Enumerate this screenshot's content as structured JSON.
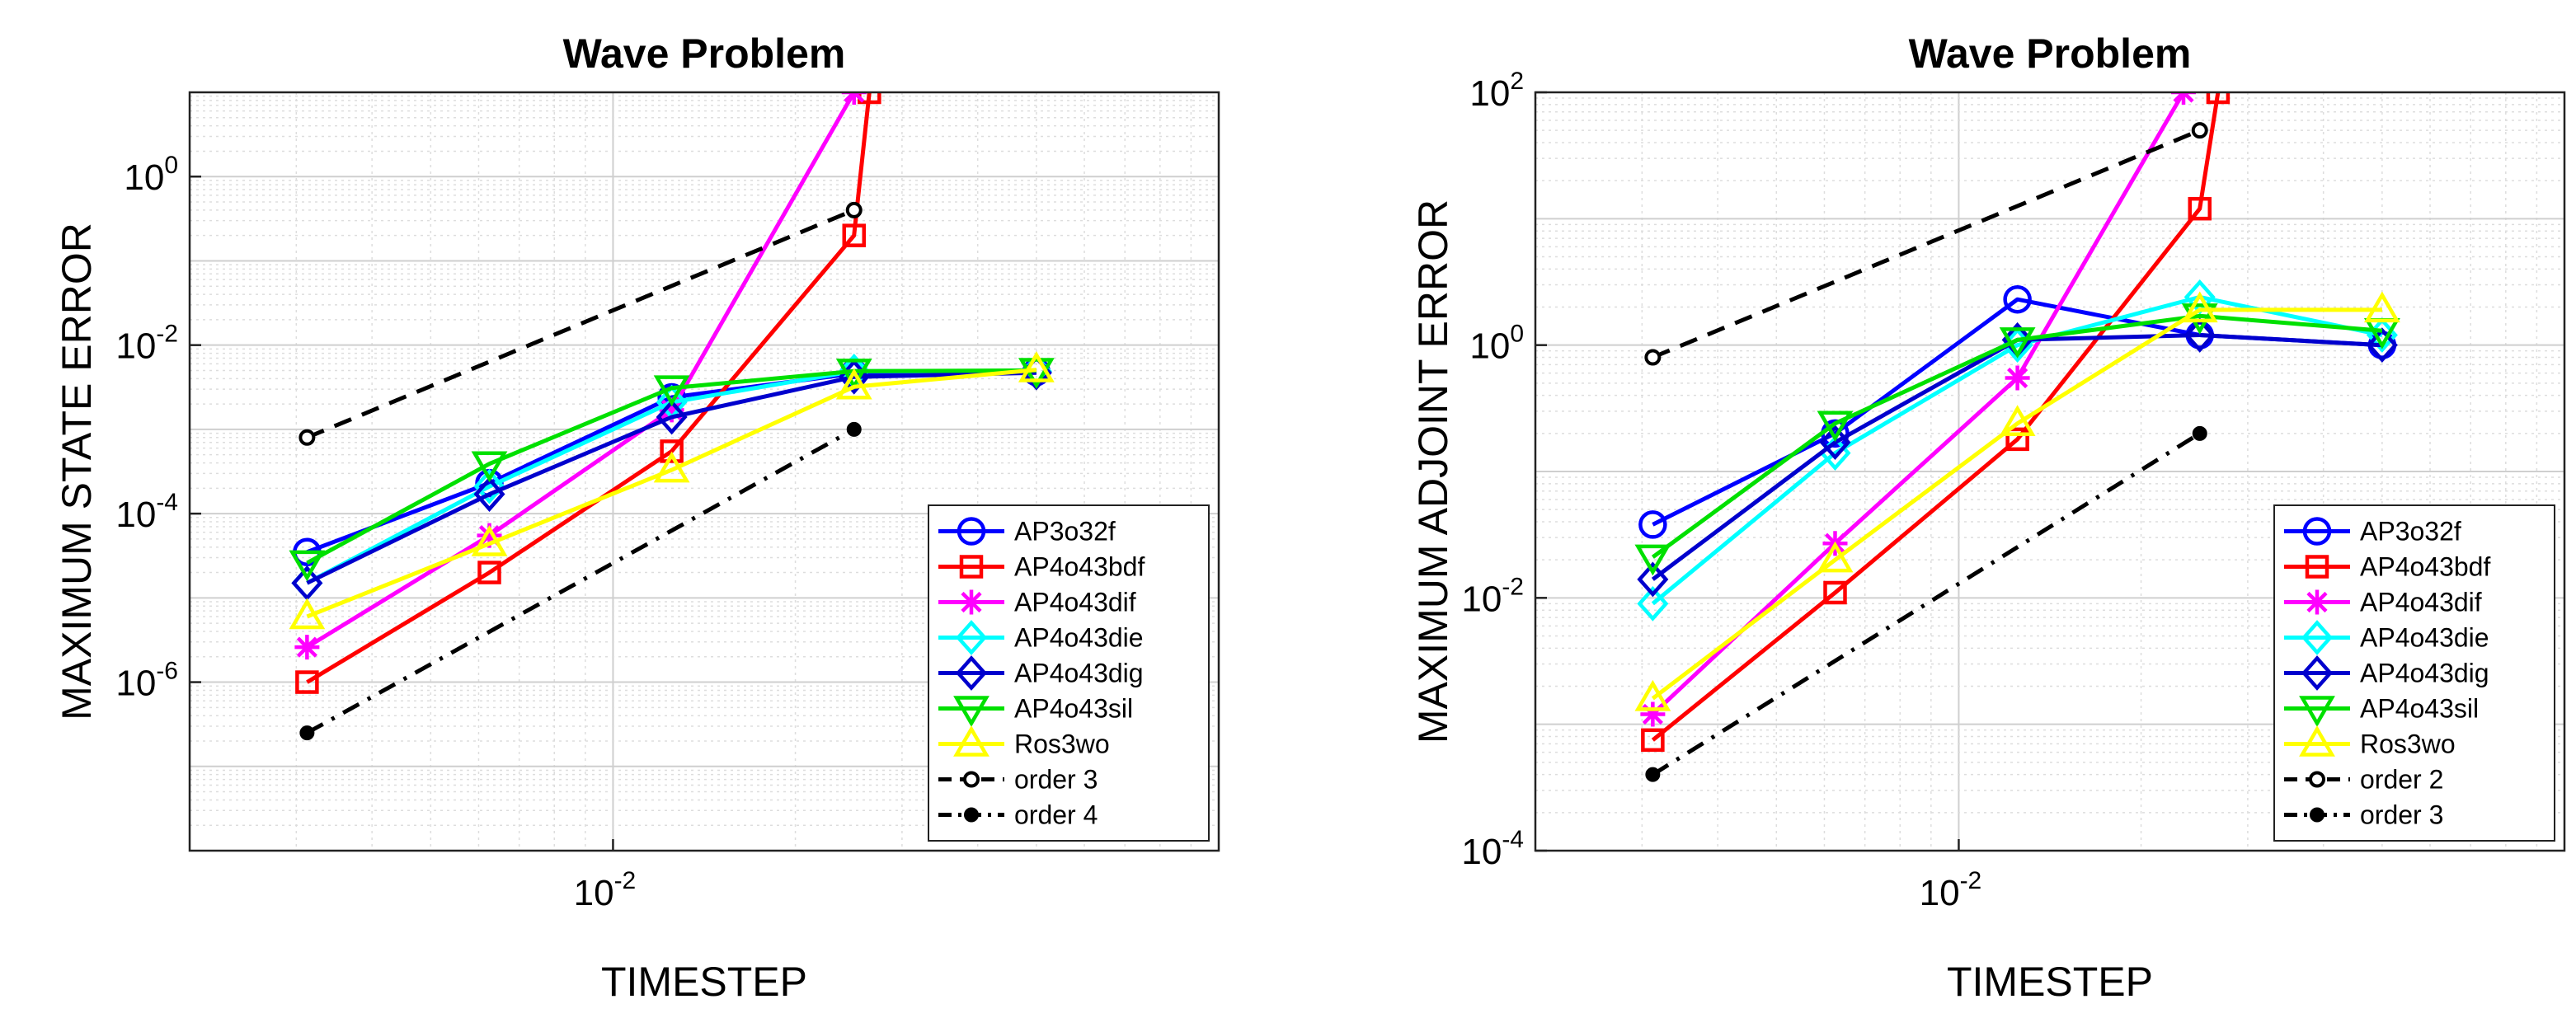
{
  "chart_data": [
    {
      "type": "line",
      "scale": "loglog",
      "title": "Wave Problem",
      "xlabel": "TIMESTEP",
      "ylabel": "MAXIMUM STATE ERROR",
      "xlim": [
        0.002,
        0.1
      ],
      "ylim": [
        1e-08,
        10
      ],
      "grid": true,
      "legend_location": "bottom-right",
      "xticks": [
        {
          "base": "10",
          "exp": "-2",
          "value": 0.01
        }
      ],
      "yticks": [
        {
          "base": "10",
          "exp": "0",
          "value": 1
        },
        {
          "base": "10",
          "exp": "-2",
          "value": 0.01
        },
        {
          "base": "10",
          "exp": "-4",
          "value": 0.0001
        },
        {
          "base": "10",
          "exp": "-6",
          "value": 1e-06
        }
      ],
      "series": [
        {
          "name": "AP3o32f",
          "color": "#0000ff",
          "marker": "circle",
          "x": [
            0.003125,
            0.00625,
            0.0125,
            0.025,
            0.05
          ],
          "y": [
            3.5e-05,
            0.00023,
            0.0024,
            0.0046,
            0.0048
          ]
        },
        {
          "name": "AP4o43bdf",
          "color": "#ff0000",
          "marker": "square",
          "x": [
            0.003125,
            0.00625,
            0.0125,
            0.025,
            0.0265
          ],
          "y": [
            1e-06,
            2e-05,
            0.00055,
            0.2,
            10
          ]
        },
        {
          "name": "AP4o43dif",
          "color": "#ff00ff",
          "marker": "asterisk",
          "x": [
            0.003125,
            0.00625,
            0.0125,
            0.025
          ],
          "y": [
            2.6e-06,
            5.5e-05,
            0.0017,
            10
          ]
        },
        {
          "name": "AP4o43die",
          "color": "#00ffff",
          "marker": "diamond",
          "x": [
            0.003125,
            0.00625,
            0.0125,
            0.025,
            0.05
          ],
          "y": [
            1.5e-05,
            0.00021,
            0.0021,
            0.0049,
            0.0049
          ]
        },
        {
          "name": "AP4o43dig",
          "color": "#0000cd",
          "marker": "diamond",
          "x": [
            0.003125,
            0.00625,
            0.0125,
            0.025,
            0.05
          ],
          "y": [
            1.5e-05,
            0.00017,
            0.0014,
            0.0042,
            0.0047
          ]
        },
        {
          "name": "AP4o43sil",
          "color": "#00e000",
          "marker": "triangle-down",
          "x": [
            0.003125,
            0.00625,
            0.0125,
            0.025,
            0.05
          ],
          "y": [
            2.6e-05,
            0.00039,
            0.0031,
            0.0049,
            0.005
          ]
        },
        {
          "name": "Ros3wo",
          "color": "#ffff00",
          "marker": "triangle-up",
          "x": [
            0.003125,
            0.00625,
            0.0125,
            0.025,
            0.05
          ],
          "y": [
            6e-06,
            4.4e-05,
            0.00033,
            0.0032,
            0.0051
          ]
        },
        {
          "name": "order 3",
          "color": "#000000",
          "marker": "small-circle",
          "dash": "dashed",
          "x": [
            0.003125,
            0.025
          ],
          "y": [
            0.0008,
            0.4
          ]
        },
        {
          "name": "order 4",
          "color": "#000000",
          "marker": "dot",
          "dash": "dashdot",
          "x": [
            0.003125,
            0.025
          ],
          "y": [
            2.5e-07,
            0.001
          ]
        }
      ]
    },
    {
      "type": "line",
      "scale": "loglog",
      "title": "Wave Problem",
      "xlabel": "TIMESTEP",
      "ylabel": "MAXIMUM ADJOINT ERROR",
      "xlim": [
        0.002,
        0.1
      ],
      "ylim": [
        0.0001,
        100
      ],
      "grid": true,
      "legend_location": "bottom-right",
      "xticks": [
        {
          "base": "10",
          "exp": "-2",
          "value": 0.01
        }
      ],
      "yticks": [
        {
          "base": "10",
          "exp": "2",
          "value": 100
        },
        {
          "base": "10",
          "exp": "0",
          "value": 1
        },
        {
          "base": "10",
          "exp": "-2",
          "value": 0.01
        },
        {
          "base": "10",
          "exp": "-4",
          "value": 0.0001
        }
      ],
      "series": [
        {
          "name": "AP3o32f",
          "color": "#0000ff",
          "marker": "circle",
          "x": [
            0.003125,
            0.00625,
            0.0125,
            0.025,
            0.05
          ],
          "y": [
            0.038,
            0.2,
            2.3,
            1.2,
            1.0
          ]
        },
        {
          "name": "AP4o43bdf",
          "color": "#ff0000",
          "marker": "square",
          "x": [
            0.003125,
            0.00625,
            0.0125,
            0.025,
            0.0268
          ],
          "y": [
            0.00075,
            0.011,
            0.18,
            12,
            100
          ]
        },
        {
          "name": "AP4o43dif",
          "color": "#ff00ff",
          "marker": "asterisk",
          "x": [
            0.003125,
            0.00625,
            0.0125,
            0.0235
          ],
          "y": [
            0.0012,
            0.027,
            0.55,
            100
          ]
        },
        {
          "name": "AP4o43die",
          "color": "#00ffff",
          "marker": "diamond",
          "x": [
            0.003125,
            0.00625,
            0.0125,
            0.025,
            0.05
          ],
          "y": [
            0.009,
            0.14,
            1.0,
            2.4,
            1.2
          ]
        },
        {
          "name": "AP4o43dig",
          "color": "#0000cd",
          "marker": "diamond",
          "x": [
            0.003125,
            0.00625,
            0.0125,
            0.025,
            0.05
          ],
          "y": [
            0.014,
            0.17,
            1.1,
            1.2,
            1.0
          ]
        },
        {
          "name": "AP4o43sil",
          "color": "#00e000",
          "marker": "triangle-down",
          "x": [
            0.003125,
            0.00625,
            0.0125,
            0.025,
            0.05
          ],
          "y": [
            0.021,
            0.24,
            1.1,
            1.7,
            1.3
          ]
        },
        {
          "name": "Ros3wo",
          "color": "#ffff00",
          "marker": "triangle-up",
          "x": [
            0.003125,
            0.00625,
            0.0125,
            0.025,
            0.05
          ],
          "y": [
            0.0016,
            0.02,
            0.24,
            1.9,
            1.9
          ]
        },
        {
          "name": "order 2",
          "color": "#000000",
          "marker": "small-circle",
          "dash": "dashed",
          "x": [
            0.003125,
            0.025
          ],
          "y": [
            0.8,
            50
          ]
        },
        {
          "name": "order 3",
          "color": "#000000",
          "marker": "dot",
          "dash": "dashdot",
          "x": [
            0.003125,
            0.025
          ],
          "y": [
            0.0004,
            0.2
          ]
        }
      ]
    }
  ]
}
